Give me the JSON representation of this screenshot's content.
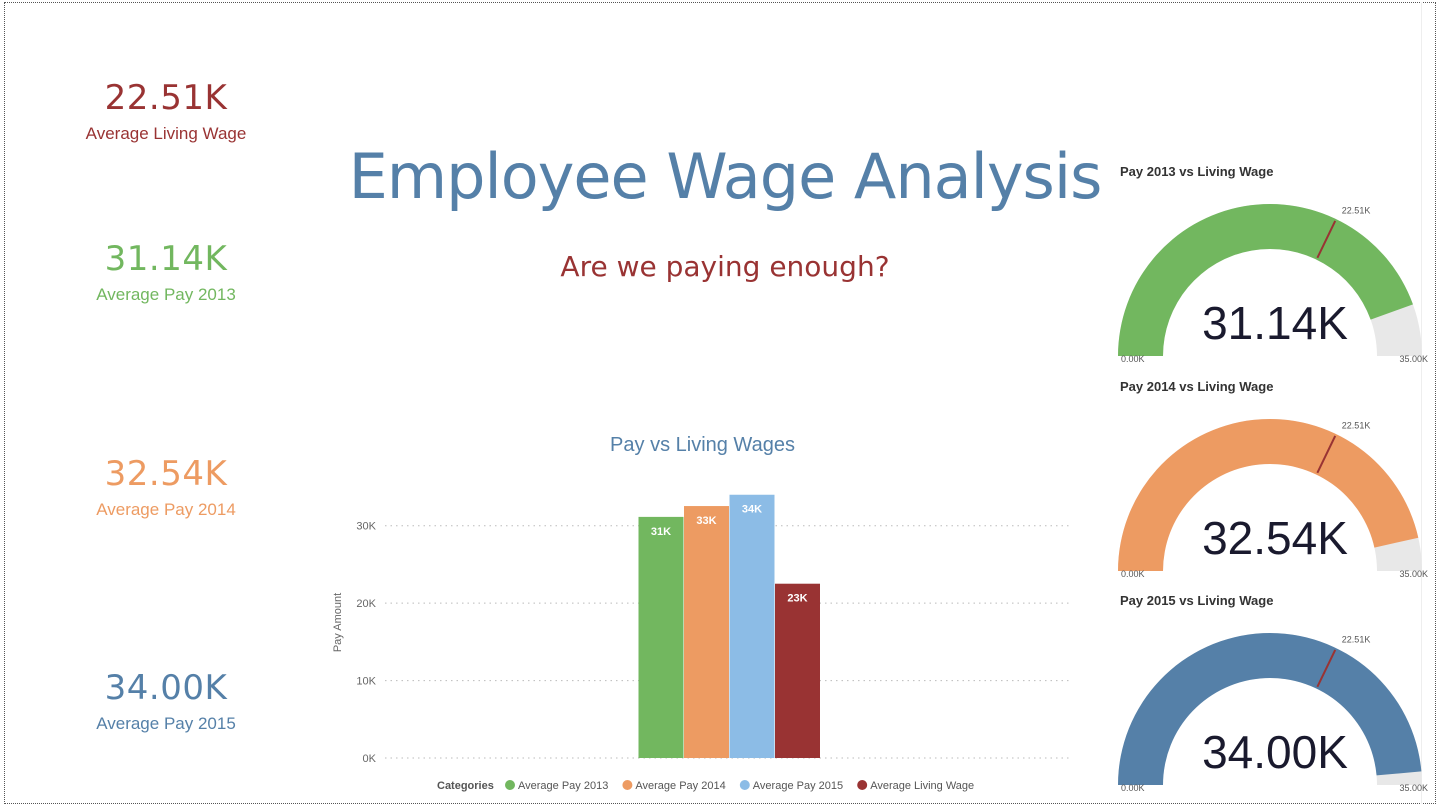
{
  "header": {
    "title": "Employee Wage Analysis",
    "subtitle": "Are we paying enough?"
  },
  "kpis": [
    {
      "value": "22.51K",
      "label": "Average Living Wage",
      "color": "#993333"
    },
    {
      "value": "31.14K",
      "label": "Average Pay 2013",
      "color": "#72b75f"
    },
    {
      "value": "32.54K",
      "label": "Average Pay 2014",
      "color": "#ed9b62"
    },
    {
      "value": "34.00K",
      "label": "Average Pay 2015",
      "color": "#5580a8"
    }
  ],
  "chart_data": [
    {
      "type": "bar",
      "title": "Pay vs Living Wages",
      "ylabel": "Pay Amount",
      "xlabel": "",
      "ylim": [
        0,
        35000
      ],
      "yticks": [
        {
          "value": 0,
          "label": "0K"
        },
        {
          "value": 10000,
          "label": "10K"
        },
        {
          "value": 20000,
          "label": "20K"
        },
        {
          "value": 30000,
          "label": "30K"
        }
      ],
      "grid": true,
      "legend_title": "Categories",
      "legend_position": "bottom",
      "series": [
        {
          "name": "Average Pay 2013",
          "value": 31140,
          "label": "31K",
          "color": "#72b75f"
        },
        {
          "name": "Average Pay 2014",
          "value": 32540,
          "label": "33K",
          "color": "#ed9b62"
        },
        {
          "name": "Average Pay 2015",
          "value": 34000,
          "label": "34K",
          "color": "#8cbce6"
        },
        {
          "name": "Average Living Wage",
          "value": 22510,
          "label": "23K",
          "color": "#993333"
        }
      ]
    },
    {
      "type": "gauge",
      "title": "Pay 2013 vs Living Wage",
      "value": 31140,
      "value_label": "31.14K",
      "min": 0,
      "max": 35000,
      "min_label": "0.00K",
      "max_label": "35.00K",
      "target": 22510,
      "target_label": "22.51K",
      "color": "#72b75f"
    },
    {
      "type": "gauge",
      "title": "Pay 2014 vs Living Wage",
      "value": 32540,
      "value_label": "32.54K",
      "min": 0,
      "max": 35000,
      "min_label": "0.00K",
      "max_label": "35.00K",
      "target": 22510,
      "target_label": "22.51K",
      "color": "#ed9b62"
    },
    {
      "type": "gauge",
      "title": "Pay 2015 vs Living Wage",
      "value": 34000,
      "value_label": "34.00K",
      "min": 0,
      "max": 35000,
      "min_label": "0.00K",
      "max_label": "35.00K",
      "target": 22510,
      "target_label": "22.51K",
      "color": "#5580a8"
    }
  ],
  "colors": {
    "gauge_track": "#e8e8e8",
    "target_line": "#993333",
    "gauge_value_text": "#1a1a2e",
    "axis_text": "#666666"
  }
}
